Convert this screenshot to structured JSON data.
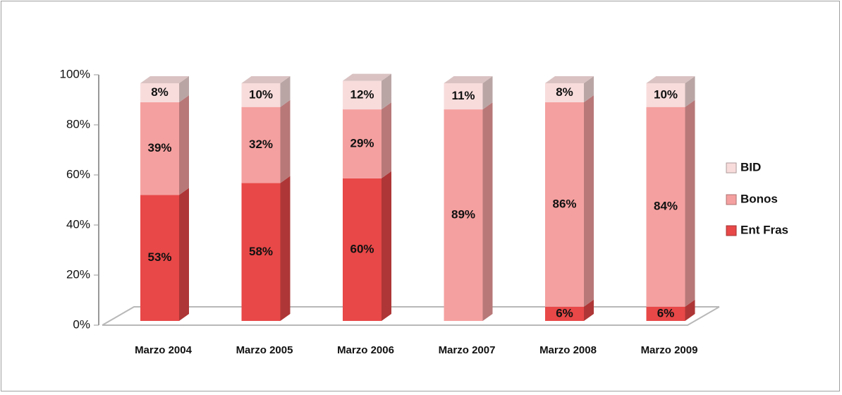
{
  "chart_data": {
    "type": "bar3d_stacked",
    "categories": [
      "Marzo 2004",
      "Marzo 2005",
      "Marzo 2006",
      "Marzo 2007",
      "Marzo 2008",
      "Marzo 2009"
    ],
    "series": [
      {
        "name": "Ent Fras",
        "color": "#e84848",
        "values": [
          53,
          58,
          60,
          null,
          6,
          6
        ],
        "value_labels": [
          "53%",
          "58%",
          "60%",
          null,
          "6%",
          "6%"
        ]
      },
      {
        "name": "Bonos",
        "color": "#f5a0a0",
        "values": [
          39,
          32,
          29,
          89,
          86,
          84
        ],
        "value_labels": [
          "39%",
          "32%",
          "29%",
          "89%",
          "86%",
          "84%"
        ]
      },
      {
        "name": "BID",
        "color": "#f8dcdc",
        "values": [
          8,
          10,
          12,
          11,
          8,
          10
        ],
        "value_labels": [
          "8%",
          "10%",
          "12%",
          "11%",
          "8%",
          "10%"
        ]
      }
    ],
    "ylim": [
      0,
      100
    ],
    "yticks": [
      {
        "value": 0,
        "label": "0%"
      },
      {
        "value": 20,
        "label": "20%"
      },
      {
        "value": 40,
        "label": "40%"
      },
      {
        "value": 60,
        "label": "60%"
      },
      {
        "value": 80,
        "label": "80%"
      },
      {
        "value": 100,
        "label": "100%"
      }
    ]
  }
}
